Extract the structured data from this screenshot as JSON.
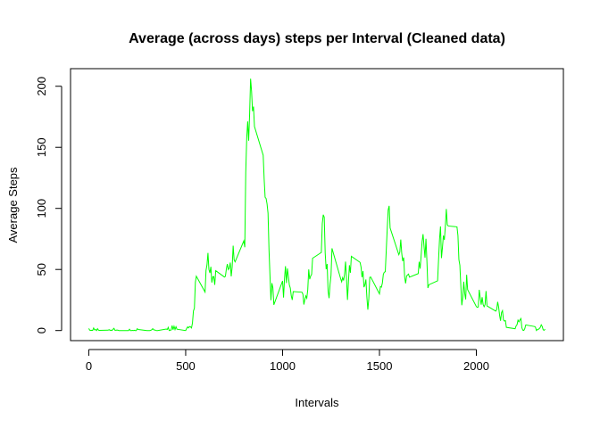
{
  "chart_data": {
    "type": "line",
    "title": "Average (across days) steps per Interval (Cleaned data)",
    "x_label": "Intervals",
    "y_label": "Average Steps",
    "color": "#00ff00",
    "xlim": [
      -94.2,
      2449.2
    ],
    "ylim": [
      -8.25,
      214.4
    ],
    "xticks": [
      0,
      500,
      1000,
      1500,
      2000
    ],
    "yticks": [
      0,
      50,
      100,
      150,
      200
    ],
    "x": [
      0,
      5,
      10,
      15,
      20,
      25,
      30,
      35,
      40,
      45,
      50,
      55,
      100,
      105,
      110,
      115,
      120,
      125,
      130,
      135,
      140,
      145,
      150,
      155,
      200,
      205,
      210,
      215,
      220,
      225,
      230,
      235,
      240,
      245,
      250,
      255,
      300,
      305,
      310,
      315,
      320,
      325,
      330,
      335,
      340,
      345,
      350,
      355,
      400,
      405,
      410,
      415,
      420,
      425,
      430,
      435,
      440,
      445,
      450,
      455,
      500,
      505,
      510,
      515,
      520,
      525,
      530,
      535,
      540,
      545,
      550,
      555,
      600,
      605,
      610,
      615,
      620,
      625,
      630,
      635,
      640,
      645,
      650,
      655,
      700,
      705,
      710,
      715,
      720,
      725,
      730,
      735,
      740,
      745,
      750,
      755,
      800,
      805,
      810,
      815,
      820,
      825,
      830,
      835,
      840,
      845,
      850,
      855,
      900,
      905,
      910,
      915,
      920,
      925,
      930,
      935,
      940,
      945,
      950,
      955,
      1000,
      1005,
      1010,
      1015,
      1020,
      1025,
      1030,
      1035,
      1040,
      1045,
      1050,
      1055,
      1100,
      1105,
      1110,
      1115,
      1120,
      1125,
      1130,
      1135,
      1140,
      1145,
      1150,
      1155,
      1200,
      1205,
      1210,
      1215,
      1220,
      1225,
      1230,
      1235,
      1240,
      1245,
      1250,
      1255,
      1300,
      1305,
      1310,
      1315,
      1320,
      1325,
      1330,
      1335,
      1340,
      1345,
      1350,
      1355,
      1400,
      1405,
      1410,
      1415,
      1420,
      1425,
      1430,
      1435,
      1440,
      1445,
      1450,
      1455,
      1500,
      1505,
      1510,
      1515,
      1520,
      1525,
      1530,
      1535,
      1540,
      1545,
      1550,
      1555,
      1600,
      1605,
      1610,
      1615,
      1620,
      1625,
      1630,
      1635,
      1640,
      1645,
      1650,
      1655,
      1700,
      1705,
      1710,
      1715,
      1720,
      1725,
      1730,
      1735,
      1740,
      1745,
      1750,
      1755,
      1800,
      1805,
      1810,
      1815,
      1820,
      1825,
      1830,
      1835,
      1840,
      1845,
      1850,
      1855,
      1900,
      1905,
      1910,
      1915,
      1920,
      1925,
      1930,
      1935,
      1940,
      1945,
      1950,
      1955,
      2000,
      2005,
      2010,
      2015,
      2020,
      2025,
      2030,
      2035,
      2040,
      2045,
      2050,
      2055,
      2100,
      2105,
      2110,
      2115,
      2120,
      2125,
      2130,
      2135,
      2140,
      2145,
      2150,
      2155,
      2200,
      2205,
      2210,
      2215,
      2220,
      2225,
      2230,
      2235,
      2240,
      2245,
      2250,
      2255,
      2300,
      2305,
      2310,
      2315,
      2320,
      2325,
      2330,
      2335,
      2340,
      2345,
      2350,
      2355
    ],
    "values": [
      1.7,
      0.3,
      0.1,
      0.2,
      0.1,
      2.1,
      0.5,
      0.9,
      0,
      1.5,
      0.3,
      0.1,
      0.3,
      0.7,
      0.2,
      0.3,
      0,
      1.1,
      1.8,
      0.2,
      0.2,
      0.4,
      0.3,
      0,
      0,
      0,
      1.1,
      0,
      0,
      0.1,
      0,
      0.2,
      0,
      0,
      1.5,
      0.9,
      0,
      0,
      0,
      0,
      0.2,
      0.6,
      1.6,
      0.6,
      0.5,
      0.1,
      0,
      0,
      1.2,
      0.9,
      2.6,
      0,
      0.3,
      0.4,
      4.1,
      0.7,
      3.5,
      0.8,
      3.1,
      1.1,
      0,
      1.6,
      3,
      2.2,
      3.3,
      3,
      2.1,
      6.1,
      16,
      18.3,
      39.5,
      44.5,
      31.5,
      49.3,
      53.8,
      63.5,
      50,
      47.1,
      52.2,
      39.3,
      44,
      44.2,
      37.4,
      49,
      43.8,
      44.4,
      50.5,
      54.5,
      49.9,
      51,
      55.7,
      44.3,
      52.3,
      69.5,
      57.8,
      56.2,
      73.4,
      68.2,
      129.4,
      157.5,
      171.2,
      155.4,
      177.3,
      206.2,
      195.9,
      179.6,
      183.4,
      167,
      143.5,
      124,
      109.1,
      108.1,
      103.7,
      96,
      66.2,
      45.2,
      24.8,
      38.8,
      35,
      21.1,
      40.6,
      27,
      42.4,
      52.7,
      38.9,
      50.8,
      44.3,
      37.4,
      34.7,
      28.3,
      25.1,
      31.9,
      31.4,
      29.7,
      21.3,
      25.5,
      28.4,
      26.5,
      33.4,
      50,
      42,
      44.6,
      46,
      59.2,
      63.9,
      87.7,
      94.8,
      92.8,
      63.4,
      50.2,
      54.5,
      32.4,
      26.5,
      37.7,
      45.1,
      67.3,
      42.3,
      39.9,
      43.3,
      41,
      46.2,
      56.4,
      42.8,
      25.1,
      40,
      53.5,
      47.3,
      60.8,
      55.8,
      52,
      43.6,
      48.7,
      35.5,
      37.5,
      41.8,
      27.5,
      17.1,
      26.1,
      43.6,
      43.8,
      30,
      36.1,
      35.5,
      38.8,
      46,
      47.8,
      48.1,
      65.3,
      82.9,
      98.7,
      102.1,
      84,
      62.1,
      64.1,
      74.5,
      63.2,
      56.9,
      59.8,
      43.9,
      38.6,
      44.7,
      45.5,
      46.2,
      43.7,
      46.6,
      56.3,
      50.7,
      61.2,
      72.7,
      78.9,
      68.9,
      59.7,
      75.1,
      56.5,
      34.8,
      37.5,
      40.7,
      58,
      74.7,
      85.3,
      59.3,
      67.8,
      77.7,
      74.2,
      85.3,
      99.5,
      86.6,
      85.6,
      84.9,
      77.8,
      58,
      53.4,
      36.3,
      20.7,
      27.4,
      40,
      30.2,
      25.5,
      45.7,
      33.5,
      19.6,
      19,
      19.3,
      33.3,
      26.8,
      21.2,
      27.3,
      21.3,
      19.5,
      21.3,
      32.3,
      20.2,
      15.9,
      17.2,
      23.5,
      19.2,
      12.5,
      8,
      14.7,
      16.3,
      8.7,
      7.8,
      8.1,
      2.6,
      1.5,
      3.7,
      4.8,
      8.5,
      7.1,
      8.7,
      9.8,
      2.2,
      0.3,
      0.1,
      1.6,
      4.6,
      3.3,
      2.8,
      0,
      0.8,
      1,
      1.6,
      2.6,
      4.7,
      3.3,
      0.6,
      0.2,
      1.1
    ]
  }
}
